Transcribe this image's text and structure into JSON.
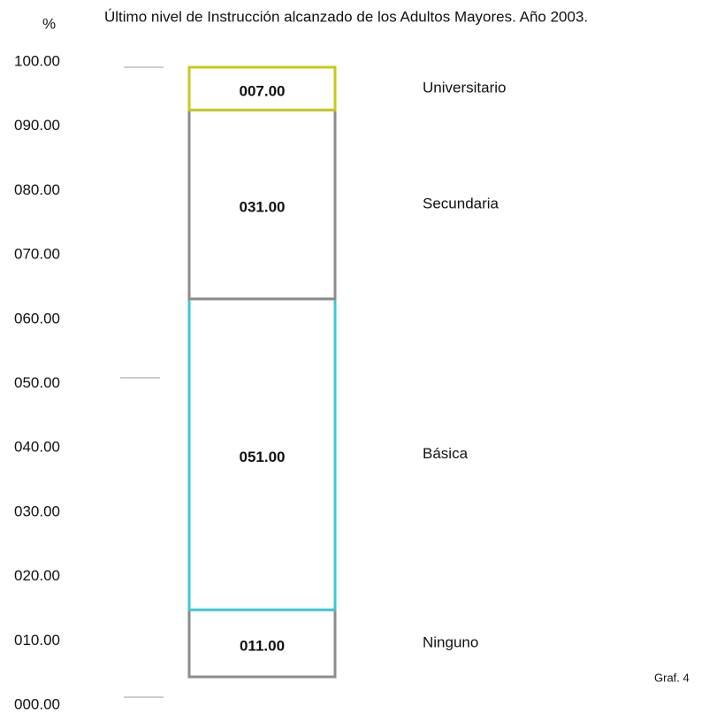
{
  "chart_data": {
    "type": "stacked_bar",
    "title": "Último nivel de Instrucción alcanzado de los Adultos Mayores. Año 2003.",
    "ylabel": "%",
    "annotation": "Graf. 4",
    "categories": [
      null
    ],
    "series": [
      {
        "name": "Ninguno",
        "color": "#8c8c8c",
        "values": [
          11
        ],
        "value_labels": [
          "011.00"
        ]
      },
      {
        "name": "Básica",
        "color": "#3ccad2",
        "values": [
          51
        ],
        "value_labels": [
          "051.00"
        ]
      },
      {
        "name": "Secundaria",
        "color": "#8c8c8c",
        "values": [
          31
        ],
        "value_labels": [
          "031.00"
        ]
      },
      {
        "name": "Universitario",
        "color": "#c8c81e",
        "values": [
          7
        ],
        "value_labels": [
          "007.00"
        ]
      }
    ],
    "ylim": [
      0,
      100
    ],
    "yticks": [
      {
        "value": 0,
        "label": "000.00"
      },
      {
        "value": 10,
        "label": "010.00"
      },
      {
        "value": 20,
        "label": "020.00"
      },
      {
        "value": 30,
        "label": "030.00"
      },
      {
        "value": 40,
        "label": "040.00"
      },
      {
        "value": 50,
        "label": "050.00"
      },
      {
        "value": 60,
        "label": "060.00"
      },
      {
        "value": 70,
        "label": "070.00"
      },
      {
        "value": 80,
        "label": "080.00"
      },
      {
        "value": 90,
        "label": "090.00"
      },
      {
        "value": 100,
        "label": "100.00"
      }
    ],
    "grid": false
  }
}
